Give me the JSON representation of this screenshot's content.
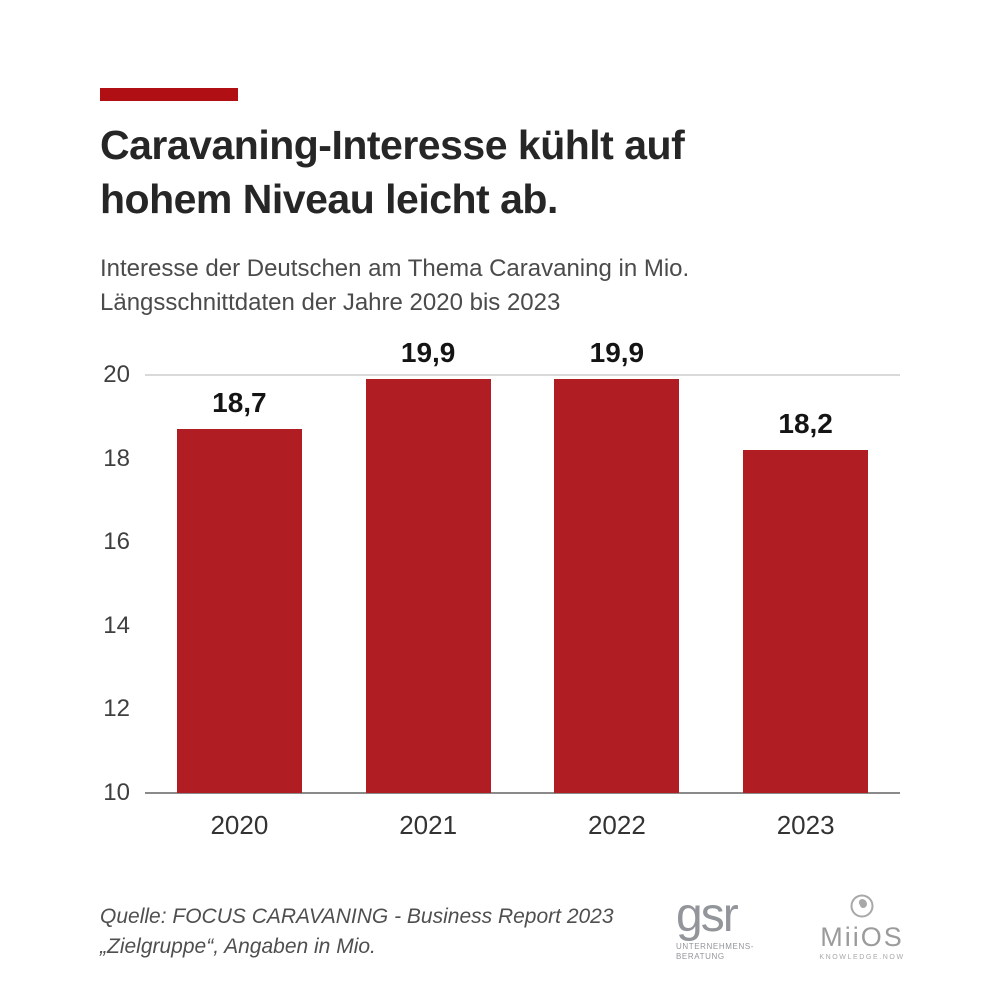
{
  "accent_color": "#b00f14",
  "title": {
    "line1": "Caravaning-Interesse kühlt auf",
    "line2": "hohem Niveau leicht ab."
  },
  "subtitle": {
    "line1": "Interesse der Deutschen am Thema Caravaning in Mio.",
    "line2": "Längsschnittdaten der Jahre 2020 bis 2023"
  },
  "chart_data": {
    "type": "bar",
    "title": "Caravaning-Interesse kühlt auf hohem Niveau leicht ab.",
    "subtitle": "Interesse der Deutschen am Thema Caravaning in Mio. Längsschnittdaten der Jahre 2020 bis 2023",
    "categories": [
      "2020",
      "2021",
      "2022",
      "2023"
    ],
    "values": [
      18.7,
      19.9,
      19.9,
      18.2
    ],
    "value_labels": [
      "18,7",
      "19,9",
      "19,9",
      "18,2"
    ],
    "xlabel": "",
    "ylabel": "",
    "ylim": [
      10,
      20
    ],
    "yticks": [
      10,
      12,
      14,
      16,
      18,
      20
    ],
    "grid": false,
    "legend": false,
    "bar_color": "#b01e23"
  },
  "footer": {
    "source_line1": "Quelle: FOCUS CARAVANING - Business Report 2023",
    "source_line2": "„Zielgruppe“, Angaben in Mio."
  },
  "logos": {
    "gsr_text": "gsr",
    "gsr_sub": "UNTERNEHMENS- BERATUNG",
    "miios_text": "MiiOS",
    "miios_sub": "KNOWLEDGE.NOW"
  }
}
